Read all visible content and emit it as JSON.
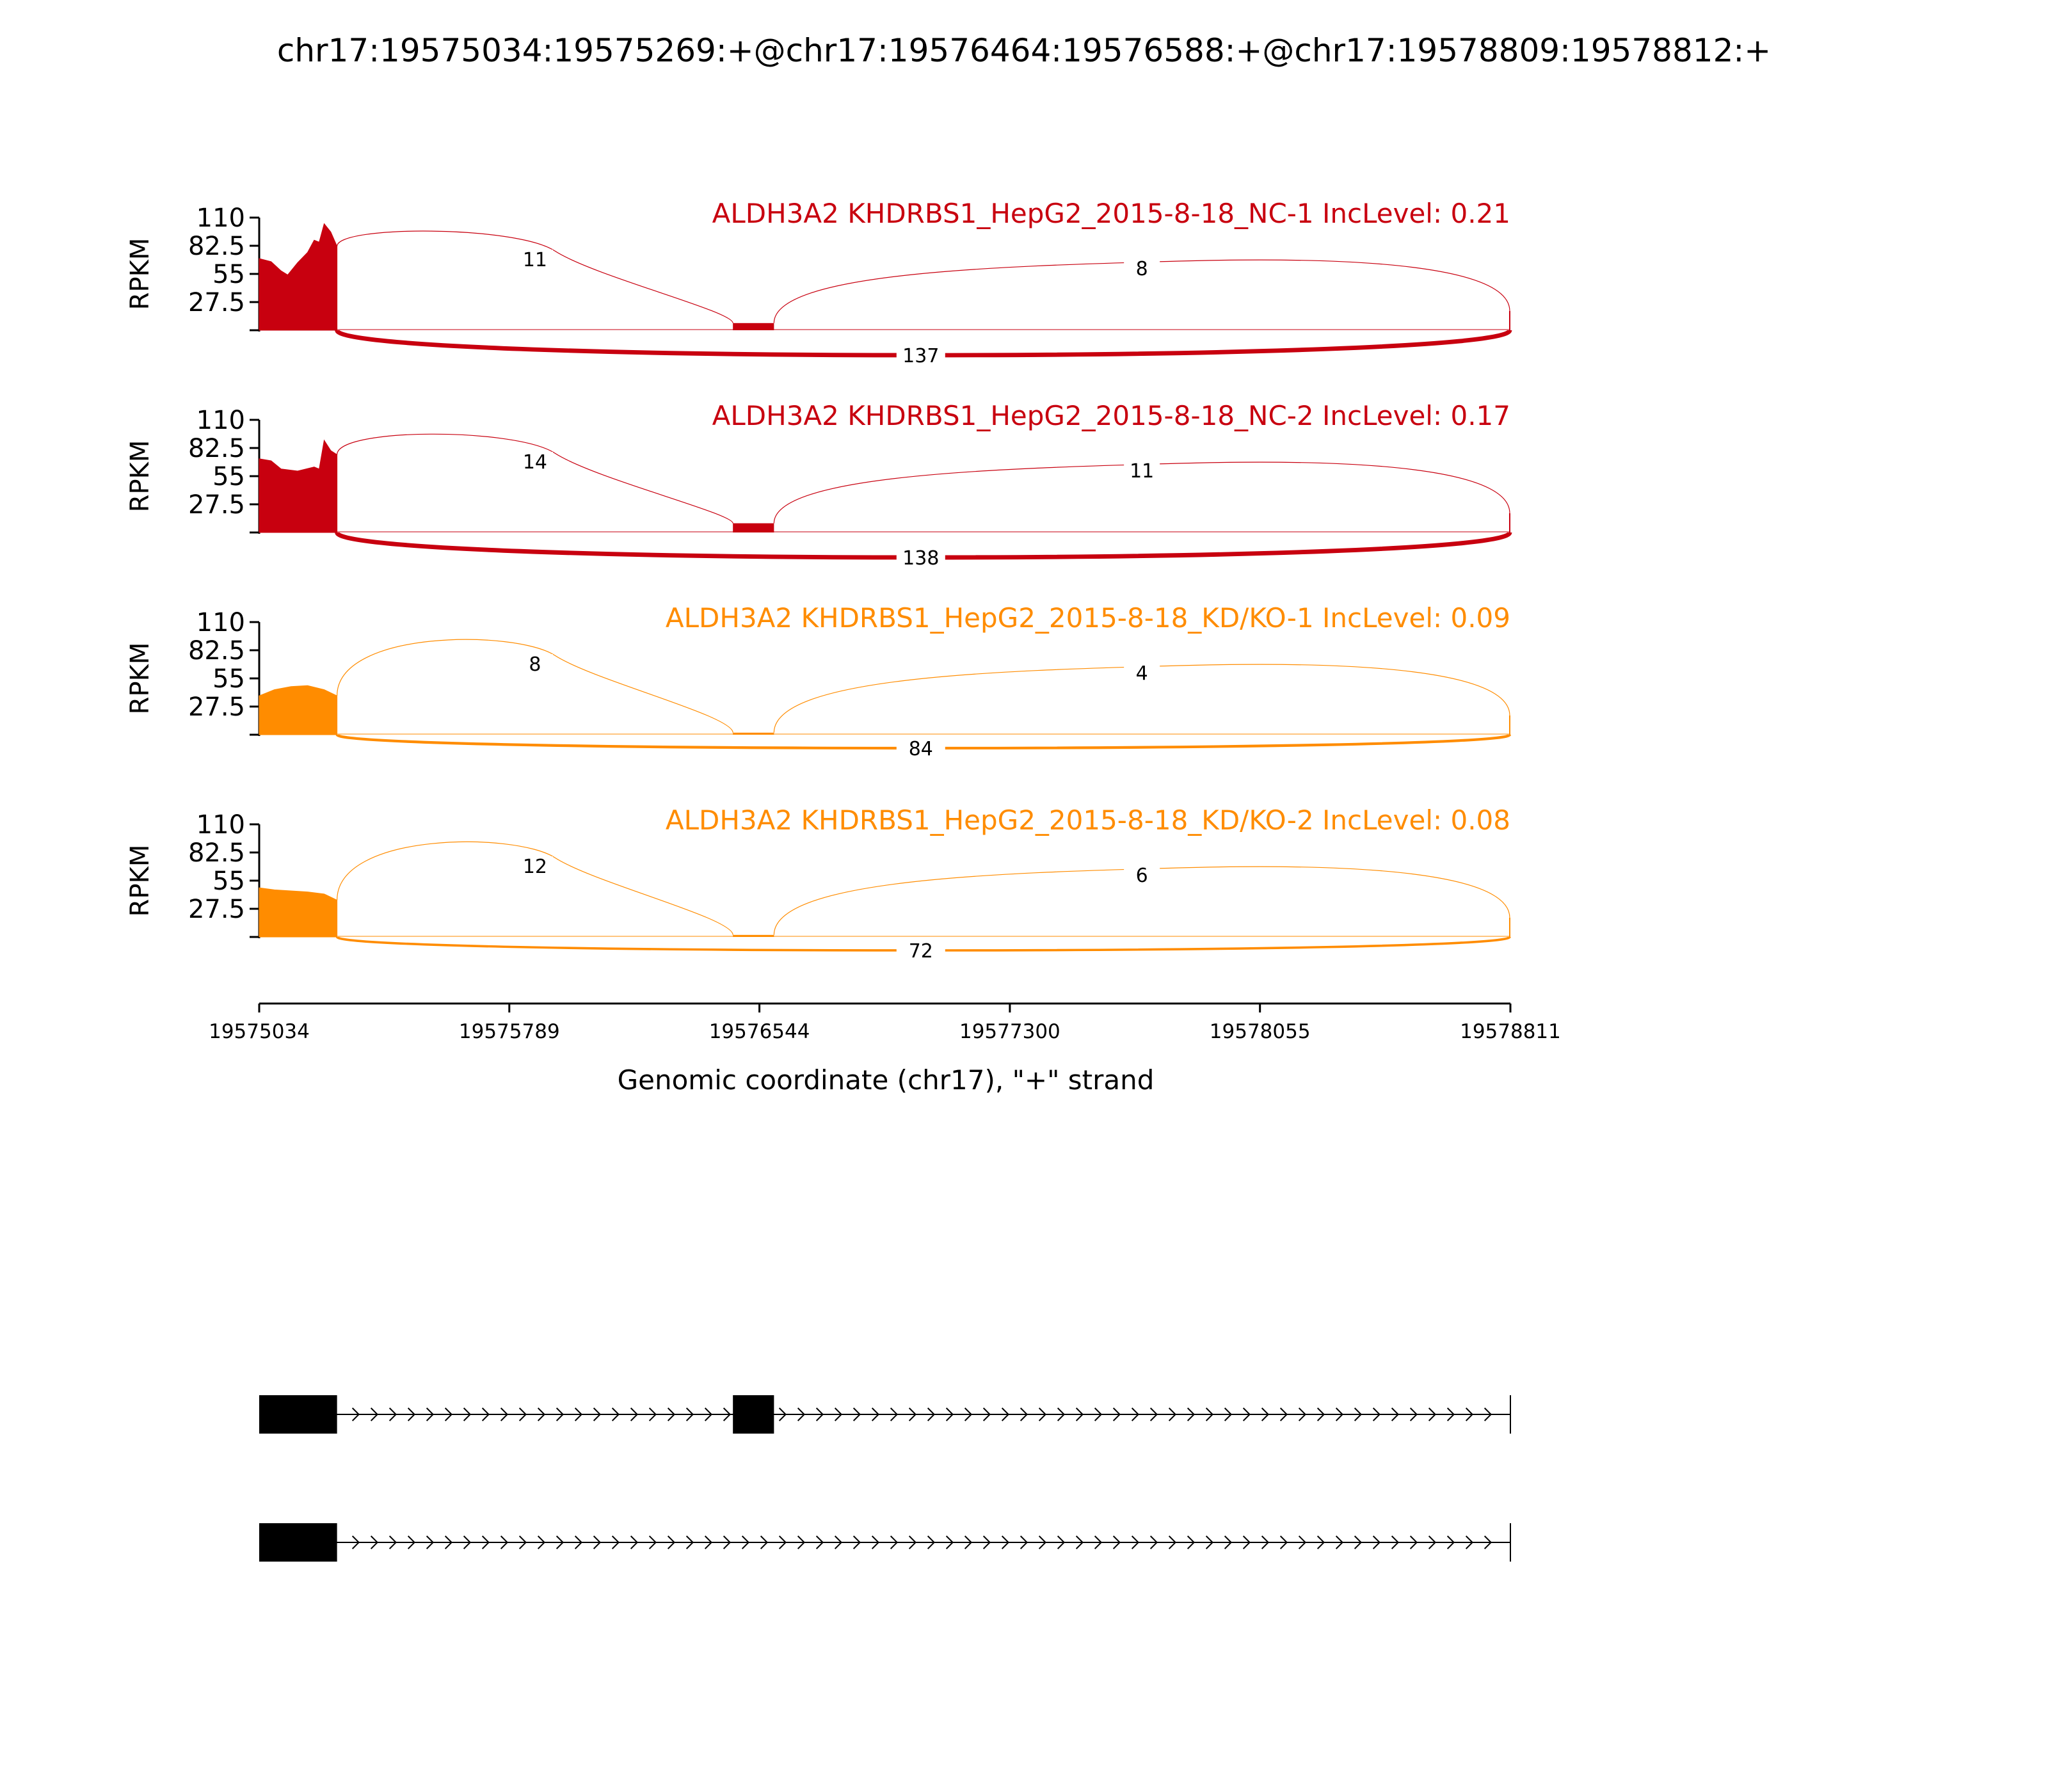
{
  "chart_data": {
    "type": "area",
    "title": "chr17:19575034:19575269:+@chr17:19576464:19576588:+@chr17:19578809:19578812:+",
    "xlabel": "Genomic coordinate (chr17), \"+\" strand",
    "xlim": [
      19575034,
      19578811
    ],
    "x_ticks": [
      "19575034",
      "19575789",
      "19576544",
      "19577300",
      "19578055",
      "19578811"
    ],
    "ylabel": "RPKM",
    "ylim": [
      0,
      110
    ],
    "y_ticks": [
      "110",
      "82.5",
      "55",
      "27.5"
    ],
    "grid": false,
    "exons": [
      {
        "start": 19575034,
        "end": 19575269
      },
      {
        "start": 19576464,
        "end": 19576588
      },
      {
        "start": 19578809,
        "end": 19578812
      }
    ],
    "series": [
      {
        "name": "ALDH3A2 KHDRBS1_HepG2_2015-8-18_NC-1 IncLevel: 0.21",
        "color": "#c8000f",
        "coverage": [
          {
            "x": 19575034,
            "y": 70
          },
          {
            "x": 19575070,
            "y": 67
          },
          {
            "x": 19575100,
            "y": 58
          },
          {
            "x": 19575120,
            "y": 54
          },
          {
            "x": 19575150,
            "y": 66
          },
          {
            "x": 19575180,
            "y": 76
          },
          {
            "x": 19575200,
            "y": 88
          },
          {
            "x": 19575215,
            "y": 86
          },
          {
            "x": 19575230,
            "y": 104
          },
          {
            "x": 19575250,
            "y": 96
          },
          {
            "x": 19575269,
            "y": 82
          }
        ],
        "exon2_coverage": 7,
        "junctions": [
          {
            "from": 19575269,
            "to": 19576464,
            "count": 11
          },
          {
            "from": 19576588,
            "to": 19578809,
            "count": 8
          },
          {
            "from": 19575269,
            "to": 19578809,
            "count": 137
          }
        ]
      },
      {
        "name": "ALDH3A2 KHDRBS1_HepG2_2015-8-18_NC-2 IncLevel: 0.17",
        "color": "#c8000f",
        "coverage": [
          {
            "x": 19575034,
            "y": 72
          },
          {
            "x": 19575070,
            "y": 70
          },
          {
            "x": 19575100,
            "y": 62
          },
          {
            "x": 19575150,
            "y": 60
          },
          {
            "x": 19575200,
            "y": 64
          },
          {
            "x": 19575215,
            "y": 62
          },
          {
            "x": 19575230,
            "y": 90
          },
          {
            "x": 19575250,
            "y": 80
          },
          {
            "x": 19575269,
            "y": 76
          }
        ],
        "exon2_coverage": 9,
        "junctions": [
          {
            "from": 19575269,
            "to": 19576464,
            "count": 14
          },
          {
            "from": 19576588,
            "to": 19578809,
            "count": 11
          },
          {
            "from": 19575269,
            "to": 19578809,
            "count": 138
          }
        ]
      },
      {
        "name": "ALDH3A2 KHDRBS1_HepG2_2015-8-18_KD/KO-1 IncLevel: 0.09",
        "color": "#ff8c00",
        "coverage": [
          {
            "x": 19575034,
            "y": 38
          },
          {
            "x": 19575080,
            "y": 44
          },
          {
            "x": 19575130,
            "y": 47
          },
          {
            "x": 19575180,
            "y": 48
          },
          {
            "x": 19575230,
            "y": 44
          },
          {
            "x": 19575269,
            "y": 38
          }
        ],
        "exon2_coverage": 2,
        "junctions": [
          {
            "from": 19575269,
            "to": 19576464,
            "count": 8
          },
          {
            "from": 19576588,
            "to": 19578809,
            "count": 4
          },
          {
            "from": 19575269,
            "to": 19578809,
            "count": 84
          }
        ]
      },
      {
        "name": "ALDH3A2 KHDRBS1_HepG2_2015-8-18_KD/KO-2 IncLevel: 0.08",
        "color": "#ff8c00",
        "coverage": [
          {
            "x": 19575034,
            "y": 48
          },
          {
            "x": 19575080,
            "y": 46
          },
          {
            "x": 19575130,
            "y": 45
          },
          {
            "x": 19575180,
            "y": 44
          },
          {
            "x": 19575230,
            "y": 42
          },
          {
            "x": 19575269,
            "y": 36
          }
        ],
        "exon2_coverage": 2,
        "junctions": [
          {
            "from": 19575269,
            "to": 19576464,
            "count": 12
          },
          {
            "from": 19576588,
            "to": 19578809,
            "count": 6
          },
          {
            "from": 19575269,
            "to": 19578809,
            "count": 72
          }
        ]
      }
    ],
    "isoforms": [
      {
        "exons": [
          [
            19575034,
            19575269
          ],
          [
            19576464,
            19576588
          ],
          [
            19578809,
            19578812
          ]
        ]
      },
      {
        "exons": [
          [
            19575034,
            19575269
          ],
          [
            19578809,
            19578812
          ]
        ]
      }
    ]
  }
}
